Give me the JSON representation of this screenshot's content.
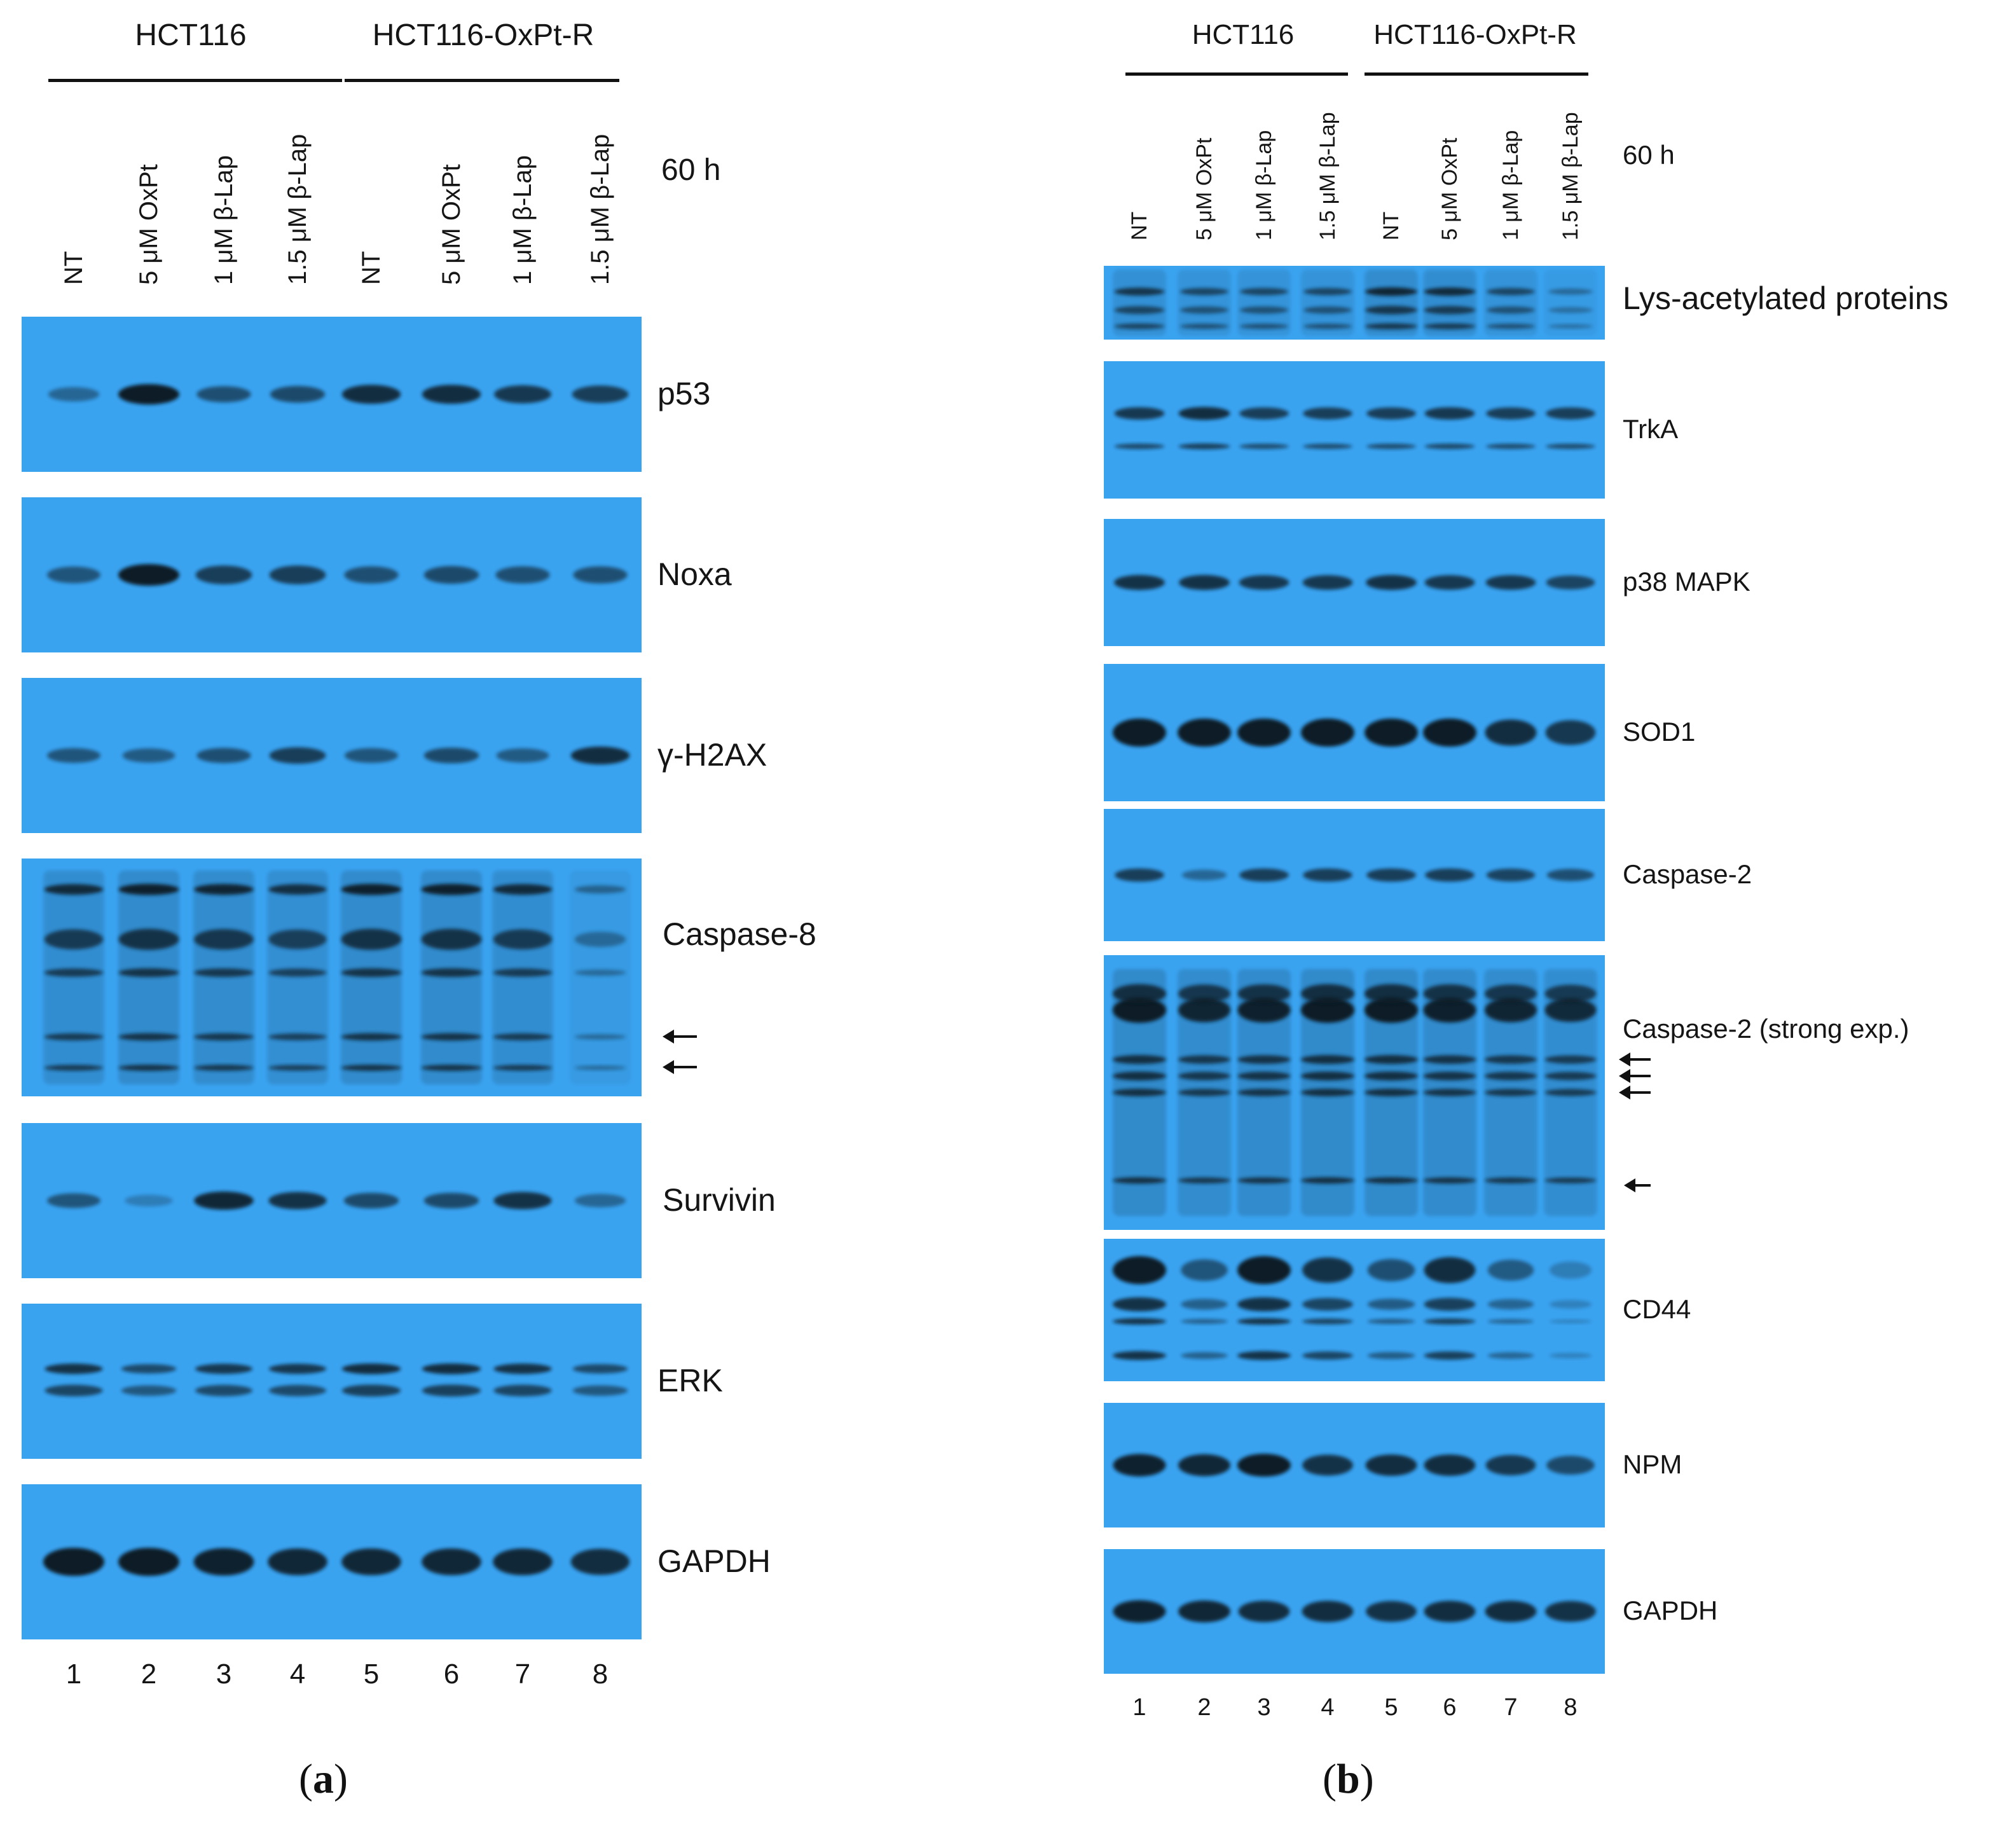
{
  "panel_a": {
    "letter_open": "(",
    "letter": "a",
    "letter_close": ")",
    "groups": [
      "HCT116",
      "HCT116-OxPt-R"
    ],
    "time": "60 h",
    "lanes": [
      "NT",
      "5 μM OxPt",
      "1 μM β-Lap",
      "1.5 μM β-Lap",
      "NT",
      "5 μM OxPt",
      "1 μM β-Lap",
      "1.5 μM β-Lap"
    ],
    "lane_numbers": [
      "1",
      "2",
      "3",
      "4",
      "5",
      "6",
      "7",
      "8"
    ],
    "blots": [
      {
        "label": "p53",
        "intensities": [
          0.35,
          1.0,
          0.55,
          0.6,
          0.85,
          0.85,
          0.75,
          0.7
        ]
      },
      {
        "label": "Noxa",
        "intensities": [
          0.5,
          1.0,
          0.7,
          0.7,
          0.55,
          0.6,
          0.55,
          0.55
        ]
      },
      {
        "label": "γ-H2AX",
        "intensities": [
          0.5,
          0.45,
          0.55,
          0.7,
          0.5,
          0.6,
          0.45,
          0.85
        ]
      },
      {
        "label": "Caspase-8",
        "intensities": [
          0.85,
          0.95,
          0.9,
          0.8,
          0.95,
          0.95,
          0.85,
          0.35
        ]
      },
      {
        "label": "Survivin",
        "intensities": [
          0.5,
          0.15,
          0.9,
          0.8,
          0.6,
          0.6,
          0.8,
          0.35
        ]
      },
      {
        "label": "ERK",
        "intensities": [
          0.8,
          0.6,
          0.75,
          0.75,
          0.85,
          0.85,
          0.8,
          0.6
        ]
      },
      {
        "label": "GAPDH",
        "intensities": [
          1.0,
          1.0,
          0.95,
          0.9,
          0.9,
          0.9,
          0.9,
          0.85
        ]
      }
    ]
  },
  "panel_b": {
    "letter_open": "(",
    "letter": "b",
    "letter_close": ")",
    "groups": [
      "HCT116",
      "HCT116-OxPt-R"
    ],
    "time": "60 h",
    "lanes": [
      "NT",
      "5 μM OxPt",
      "1 μM β-Lap",
      "1.5 μM β-Lap",
      "NT",
      "5 μM OxPt",
      "1 μM β-Lap",
      "1.5 μM β-Lap"
    ],
    "lane_numbers": [
      "1",
      "2",
      "3",
      "4",
      "5",
      "6",
      "7",
      "8"
    ],
    "blots": [
      {
        "label": "Lys-acetylated proteins",
        "intensities": [
          0.75,
          0.6,
          0.6,
          0.6,
          0.9,
          0.85,
          0.6,
          0.3
        ]
      },
      {
        "label": "TrkA",
        "intensities": [
          0.75,
          0.85,
          0.7,
          0.7,
          0.7,
          0.75,
          0.7,
          0.7
        ]
      },
      {
        "label": "p38 MAPK",
        "intensities": [
          0.8,
          0.8,
          0.75,
          0.75,
          0.8,
          0.75,
          0.75,
          0.65
        ]
      },
      {
        "label": "SOD1",
        "intensities": [
          1.0,
          1.0,
          1.0,
          1.0,
          1.0,
          1.0,
          0.85,
          0.75
        ]
      },
      {
        "label": "Caspase-2",
        "intensities": [
          0.7,
          0.35,
          0.7,
          0.7,
          0.7,
          0.7,
          0.65,
          0.55
        ]
      },
      {
        "label": "Caspase-2 (strong exp.)",
        "intensities": [
          1.0,
          0.9,
          0.95,
          1.0,
          1.0,
          0.95,
          0.9,
          0.85
        ]
      },
      {
        "label": "CD44",
        "intensities": [
          1.0,
          0.5,
          1.0,
          0.8,
          0.55,
          0.85,
          0.45,
          0.15
        ]
      },
      {
        "label": "NPM",
        "intensities": [
          0.95,
          0.9,
          1.0,
          0.8,
          0.85,
          0.85,
          0.75,
          0.6
        ]
      },
      {
        "label": "GAPDH",
        "intensities": [
          0.95,
          0.9,
          0.85,
          0.85,
          0.8,
          0.85,
          0.85,
          0.8
        ]
      }
    ]
  },
  "colors": {
    "blot_background": "#3aa3f0",
    "band": "#0b1a28"
  }
}
